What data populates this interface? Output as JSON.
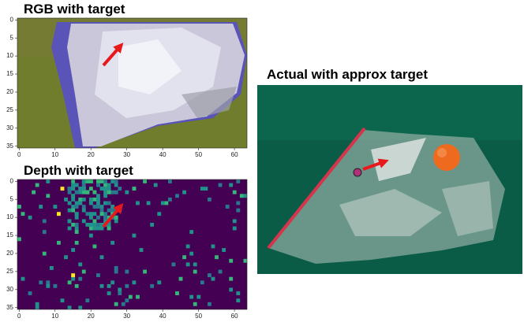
{
  "panels": [
    {
      "title": "RGB with target",
      "xticks": [
        0,
        10,
        20,
        30,
        40,
        50,
        60
      ],
      "yticks": [
        0,
        5,
        10,
        15,
        20,
        25,
        30,
        35
      ]
    },
    {
      "title": "Depth with target",
      "xticks": [
        0,
        10,
        20,
        30,
        40,
        50,
        60
      ],
      "yticks": [
        0,
        5,
        10,
        15,
        20,
        25,
        30,
        35
      ]
    }
  ],
  "photo": {
    "title": "Actual with approx target"
  }
}
